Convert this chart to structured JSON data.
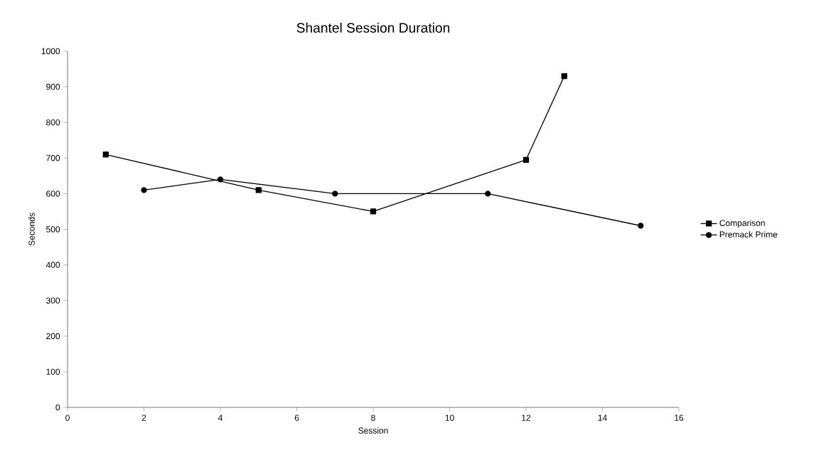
{
  "chart_data": {
    "type": "line",
    "title": "Shantel Session Duration",
    "xlabel": "Session",
    "ylabel": "Seconds",
    "xlim": [
      0,
      16
    ],
    "xticks": [
      0,
      2,
      4,
      6,
      8,
      10,
      12,
      14,
      16
    ],
    "ylim": [
      0,
      1000
    ],
    "yticks": [
      0,
      100,
      200,
      300,
      400,
      500,
      600,
      700,
      800,
      900,
      1000
    ],
    "grid": false,
    "legend": "right",
    "series": [
      {
        "name": "Comparison",
        "color": "#000000",
        "marker": "square",
        "x": [
          1,
          5,
          8,
          12,
          13
        ],
        "values": [
          710,
          610,
          550,
          695,
          930
        ]
      },
      {
        "name": "Premack Prime",
        "color": "#000000",
        "marker": "circle",
        "x": [
          2,
          4,
          7,
          11,
          15
        ],
        "values": [
          610,
          640,
          600,
          600,
          510
        ]
      }
    ]
  }
}
